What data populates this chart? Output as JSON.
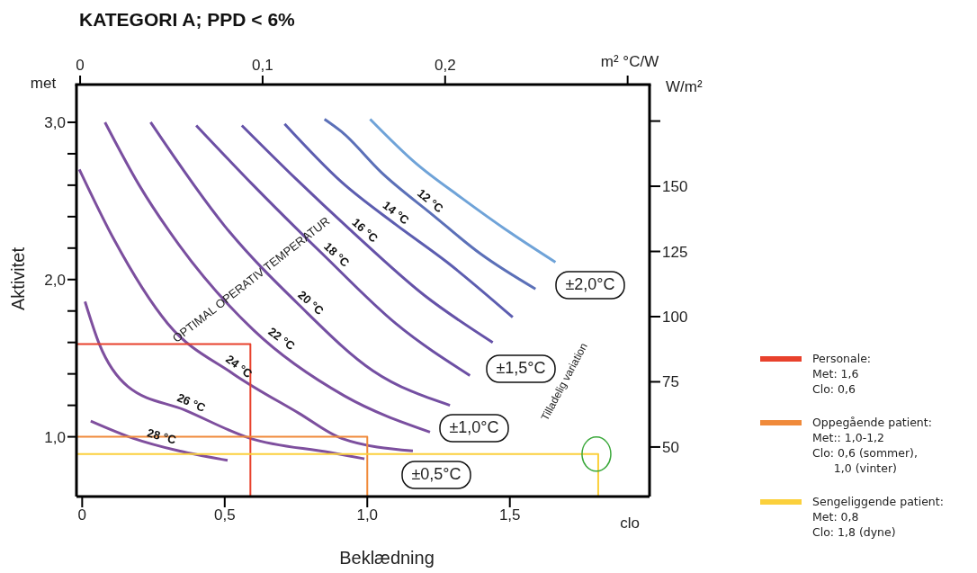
{
  "chart_data": {
    "type": "line",
    "title": "KATEGORI A; PPD < 6%",
    "xlabel": "Beklædning",
    "ylabel": "Aktivitet",
    "y2label": "W/m²",
    "x2label": "m² °C/W",
    "xlim": [
      -0.02,
      1.99
    ],
    "xticks": [
      {
        "value": 0,
        "label": "0"
      },
      {
        "value": 0.5,
        "label": "0,5"
      },
      {
        "value": 1.0,
        "label": "1,0"
      },
      {
        "value": 1.5,
        "label": "1,5"
      }
    ],
    "ylim": [
      0.62,
      3.24
    ],
    "yticks": [
      {
        "value": 1.0,
        "label": "1,0"
      },
      {
        "value": 1.2,
        "label": null
      },
      {
        "value": 1.4,
        "label": null
      },
      {
        "value": 1.6,
        "label": null
      },
      {
        "value": 1.8,
        "label": null
      },
      {
        "value": 2.0,
        "label": "2,0"
      },
      {
        "value": 2.2,
        "label": null
      },
      {
        "value": 2.4,
        "label": null
      },
      {
        "value": 2.6,
        "label": null
      },
      {
        "value": 2.8,
        "label": null
      },
      {
        "value": 3.0,
        "label": "3,0"
      }
    ],
    "x2lim": [
      -0.002,
      0.312
    ],
    "x2ticks": [
      {
        "value": 0,
        "label": "0"
      },
      {
        "value": 0.1,
        "label": "0,1"
      },
      {
        "value": 0.2,
        "label": "0,2"
      },
      {
        "value": 0.3,
        "label": null
      }
    ],
    "y2lim": [
      31,
      189
    ],
    "y2ticks": [
      50,
      75,
      100,
      125,
      150,
      {
        "value": 175,
        "label": null
      }
    ],
    "legend": "right",
    "series": [
      {
        "color": "#6fa3d8",
        "x": [
          1.01,
          1.17,
          1.33,
          1.5,
          1.66
        ],
        "values": [
          3.02,
          2.74,
          2.52,
          2.3,
          2.11
        ]
      },
      {
        "name": "12 °C",
        "color": "#5b70b8",
        "x": [
          0.85,
          0.91,
          1.05,
          1.23,
          1.4,
          1.59
        ],
        "values": [
          3.02,
          2.94,
          2.68,
          2.41,
          2.16,
          1.94
        ]
      },
      {
        "name": "14 °C",
        "color": "#5c5db0",
        "x": [
          0.71,
          0.91,
          1.1,
          1.28,
          1.51
        ],
        "values": [
          2.99,
          2.62,
          2.35,
          2.11,
          1.76
        ]
      },
      {
        "name": "16 °C",
        "color": "#6552a8",
        "x": [
          0.56,
          0.75,
          0.95,
          1.2,
          1.44
        ],
        "values": [
          2.98,
          2.64,
          2.3,
          1.9,
          1.6
        ]
      },
      {
        "name": "18 °C",
        "color": "#6c4fa4",
        "x": [
          0.4,
          0.6,
          0.85,
          1.1,
          1.36
        ],
        "values": [
          2.98,
          2.6,
          2.15,
          1.72,
          1.39
        ]
      },
      {
        "name": "20 °C",
        "color": "#744fa2",
        "x": [
          0.24,
          0.5,
          0.76,
          1.02,
          1.29
        ],
        "values": [
          3.0,
          2.34,
          1.84,
          1.42,
          1.2
        ]
      },
      {
        "name": "22 °C",
        "color": "#7a4fa0",
        "x": [
          0.08,
          0.2,
          0.34,
          0.6,
          0.92,
          1.22
        ],
        "values": [
          3.0,
          2.6,
          2.22,
          1.68,
          1.26,
          1.03
        ]
      },
      {
        "name": "24 °C",
        "color": "#7c4f9e",
        "x": [
          -0.01,
          0.11,
          0.3,
          0.53,
          0.76,
          0.91,
          1.16
        ],
        "values": [
          2.7,
          2.26,
          1.72,
          1.4,
          1.15,
          0.99,
          0.91
        ]
      },
      {
        "name": "26 °C",
        "color": "#7e4f9e",
        "x": [
          0.01,
          0.06,
          0.16,
          0.36,
          0.59,
          0.87,
          0.99
        ],
        "values": [
          1.86,
          1.59,
          1.32,
          1.17,
          0.99,
          0.9,
          0.86
        ]
      },
      {
        "name": "28 °C",
        "color": "#804f9e",
        "x": [
          0.03,
          0.18,
          0.34,
          0.51
        ],
        "values": [
          1.1,
          0.99,
          0.91,
          0.85
        ]
      },
      {
        "type": "step",
        "name": "Personale:\nMet: 1,6\nClo: 0,6",
        "color": "#e8412c",
        "x": [
          -0.02,
          0.59
        ],
        "values": [
          1.59,
          0.62
        ]
      },
      {
        "type": "step",
        "name": "Oppegående patient:\nMet:: 1,0-1,2\nClo: 0,6 (sommer),\n      1,0 (vinter)",
        "color": "#f08a3a",
        "x": [
          -0.02,
          1.0
        ],
        "values": [
          1.0,
          0.62
        ]
      },
      {
        "type": "step",
        "name": "Sengeliggende patient:\nMet: 0,8\nClo: 1,8 (dyne)",
        "color": "#fbd03c",
        "x": [
          -0.02,
          1.81
        ],
        "values": [
          0.89,
          0.62
        ]
      }
    ],
    "annotations": [
      "±2,0°C",
      "±1,5°C",
      "±1,0°C",
      "±0,5°C",
      "OPTIMAL OPERATIV TEMPERATUR",
      "Tilladelig variation",
      "met",
      "clo"
    ]
  }
}
